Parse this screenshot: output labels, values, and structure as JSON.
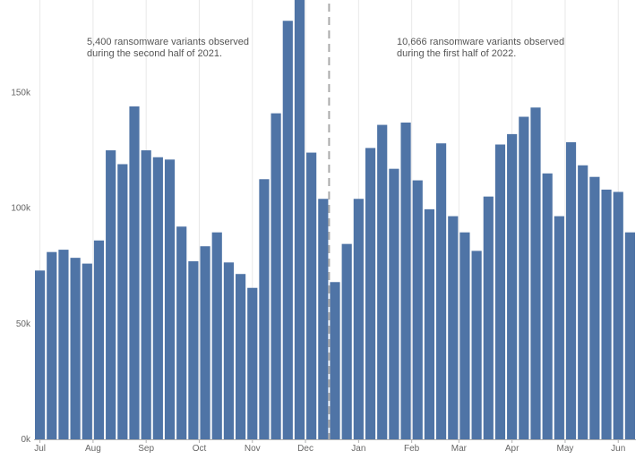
{
  "chart_data": {
    "type": "bar",
    "title": "",
    "xlabel": "",
    "ylabel": "",
    "ylim": [
      0,
      190000
    ],
    "grid": {
      "vertical": true,
      "horizontal": false
    },
    "y_ticks": [
      {
        "value": 0,
        "label": "0k"
      },
      {
        "value": 50000,
        "label": "50k"
      },
      {
        "value": 100000,
        "label": "100k"
      },
      {
        "value": 150000,
        "label": "150k"
      }
    ],
    "month_ticks": [
      {
        "label": "Jul",
        "at_bar": 0
      },
      {
        "label": "Aug",
        "at_bar": 4.5
      },
      {
        "label": "Sep",
        "at_bar": 9
      },
      {
        "label": "Oct",
        "at_bar": 13.5
      },
      {
        "label": "Nov",
        "at_bar": 18
      },
      {
        "label": "Dec",
        "at_bar": 22.5
      },
      {
        "label": "Jan",
        "at_bar": 27
      },
      {
        "label": "Feb",
        "at_bar": 31.5
      },
      {
        "label": "Mar",
        "at_bar": 35.5
      },
      {
        "label": "Apr",
        "at_bar": 40
      },
      {
        "label": "May",
        "at_bar": 44.5
      },
      {
        "label": "Jun",
        "at_bar": 49
      }
    ],
    "values": [
      73000,
      81000,
      82000,
      78500,
      76000,
      86000,
      125000,
      119000,
      144000,
      125000,
      122000,
      121000,
      92000,
      77000,
      83500,
      89500,
      76500,
      71500,
      65500,
      112500,
      141000,
      181000,
      191000,
      124000,
      104000,
      68000,
      84500,
      104000,
      126000,
      136000,
      117000,
      137000,
      112000,
      99500,
      128000,
      96500,
      89500,
      81500,
      105000,
      127500,
      132000,
      139500,
      143500,
      115000,
      96500,
      128500,
      118500,
      113500,
      108000,
      107000,
      89500
    ],
    "divider_after_bar": 24,
    "colors": {
      "bar": "#4f74a6",
      "grid": "#e8e8e8",
      "axis": "#b0b0b0",
      "divider": "#aaaaaa",
      "annotation": "#555555",
      "tick": "#666666"
    },
    "annotations": [
      {
        "lines": [
          "5,400 ransomware variants observed",
          "during the second half of 2021."
        ]
      },
      {
        "lines": [
          "10,666 ransomware variants observed",
          "during the first half of 2022."
        ]
      }
    ]
  }
}
